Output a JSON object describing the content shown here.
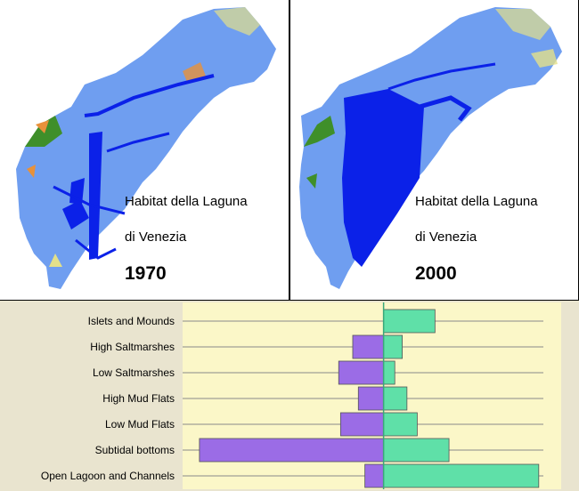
{
  "maps": [
    {
      "caption_line1": "Habitat della Laguna",
      "caption_line2": "di Venezia",
      "year": "1970"
    },
    {
      "caption_line1": "Habitat della Laguna",
      "caption_line2": "di Venezia",
      "year": "2000"
    }
  ],
  "colors": {
    "lagoon": "#6f9ef0",
    "channels": "#0b21e8",
    "saltmarsh": "#3f8f2a",
    "mudflat": "#e3e08a",
    "urban": "#e8913a",
    "negative_bar": "#9b6ce6",
    "positive_bar": "#5fe0a8",
    "plot_bg": "#fbf7c8",
    "panel_bg": "#e9e4cf"
  },
  "chart_data": {
    "type": "bar",
    "orientation": "horizontal",
    "title": "",
    "xlabel": "",
    "ylabel": "",
    "categories": [
      "Islets and Mounds",
      "High Saltmarshes",
      "Low Saltmarshes",
      "High Mud Flats",
      "Low Mud Flats",
      "Subtidal bottoms",
      "Open Lagoon and Channels"
    ],
    "series": [
      {
        "values": [
          0,
          -33,
          -48,
          -27,
          -46,
          -197,
          -20
        ]
      },
      {
        "values": [
          55,
          20,
          12,
          25,
          36,
          70,
          166
        ]
      }
    ],
    "xlim": [
      -215,
      190
    ],
    "grid": true
  }
}
